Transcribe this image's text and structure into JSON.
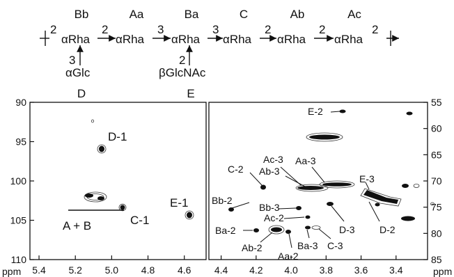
{
  "scheme": {
    "residues": [
      {
        "id": "Bb",
        "name": "αRha"
      },
      {
        "id": "Aa",
        "name": "αRha"
      },
      {
        "id": "Ba",
        "name": "αRha"
      },
      {
        "id": "C",
        "name": "αRha"
      },
      {
        "id": "Ab",
        "name": "αRha"
      },
      {
        "id": "Ac",
        "name": "αRha"
      }
    ],
    "links": [
      "2",
      "2",
      "3",
      "3",
      "2",
      "2",
      "2"
    ],
    "branches": [
      {
        "id": "D",
        "name": "αGlc",
        "linkage": "3"
      },
      {
        "id": "E",
        "name": "βGlcNAc",
        "linkage": "2"
      }
    ]
  },
  "chart_data": {
    "type": "scatter",
    "left_panel": {
      "xlabel": "ppm",
      "xlim": [
        5.45,
        4.48
      ],
      "ylim": [
        90,
        110
      ],
      "xticks": [
        "5.4",
        "5.2",
        "5.0",
        "4.8",
        "4.6"
      ],
      "yticks": [
        "90",
        "95",
        "100",
        "105",
        "110"
      ],
      "labels": [
        "D-1",
        "A + B",
        "C-1",
        "E-1"
      ]
    },
    "right_panel": {
      "xlabel": "ppm",
      "xlim": [
        4.47,
        3.22
      ],
      "ylim": [
        55,
        85
      ],
      "xticks": [
        "4.4",
        "4.2",
        "4.0",
        "3.8",
        "3.6",
        "3.4"
      ],
      "yticks": [
        "55",
        "60",
        "65",
        "70",
        "75",
        "80",
        "85"
      ],
      "labels": [
        "E-2",
        "E-3",
        "Ac-3",
        "Aa-3",
        "C-2",
        "Ab-3",
        "Bb-2",
        "Bb-3",
        "Ac-2",
        "D-3",
        "D-2",
        "Ba-2",
        "Ab-2",
        "Aa-2",
        "Ba-3",
        "C-3"
      ]
    }
  }
}
